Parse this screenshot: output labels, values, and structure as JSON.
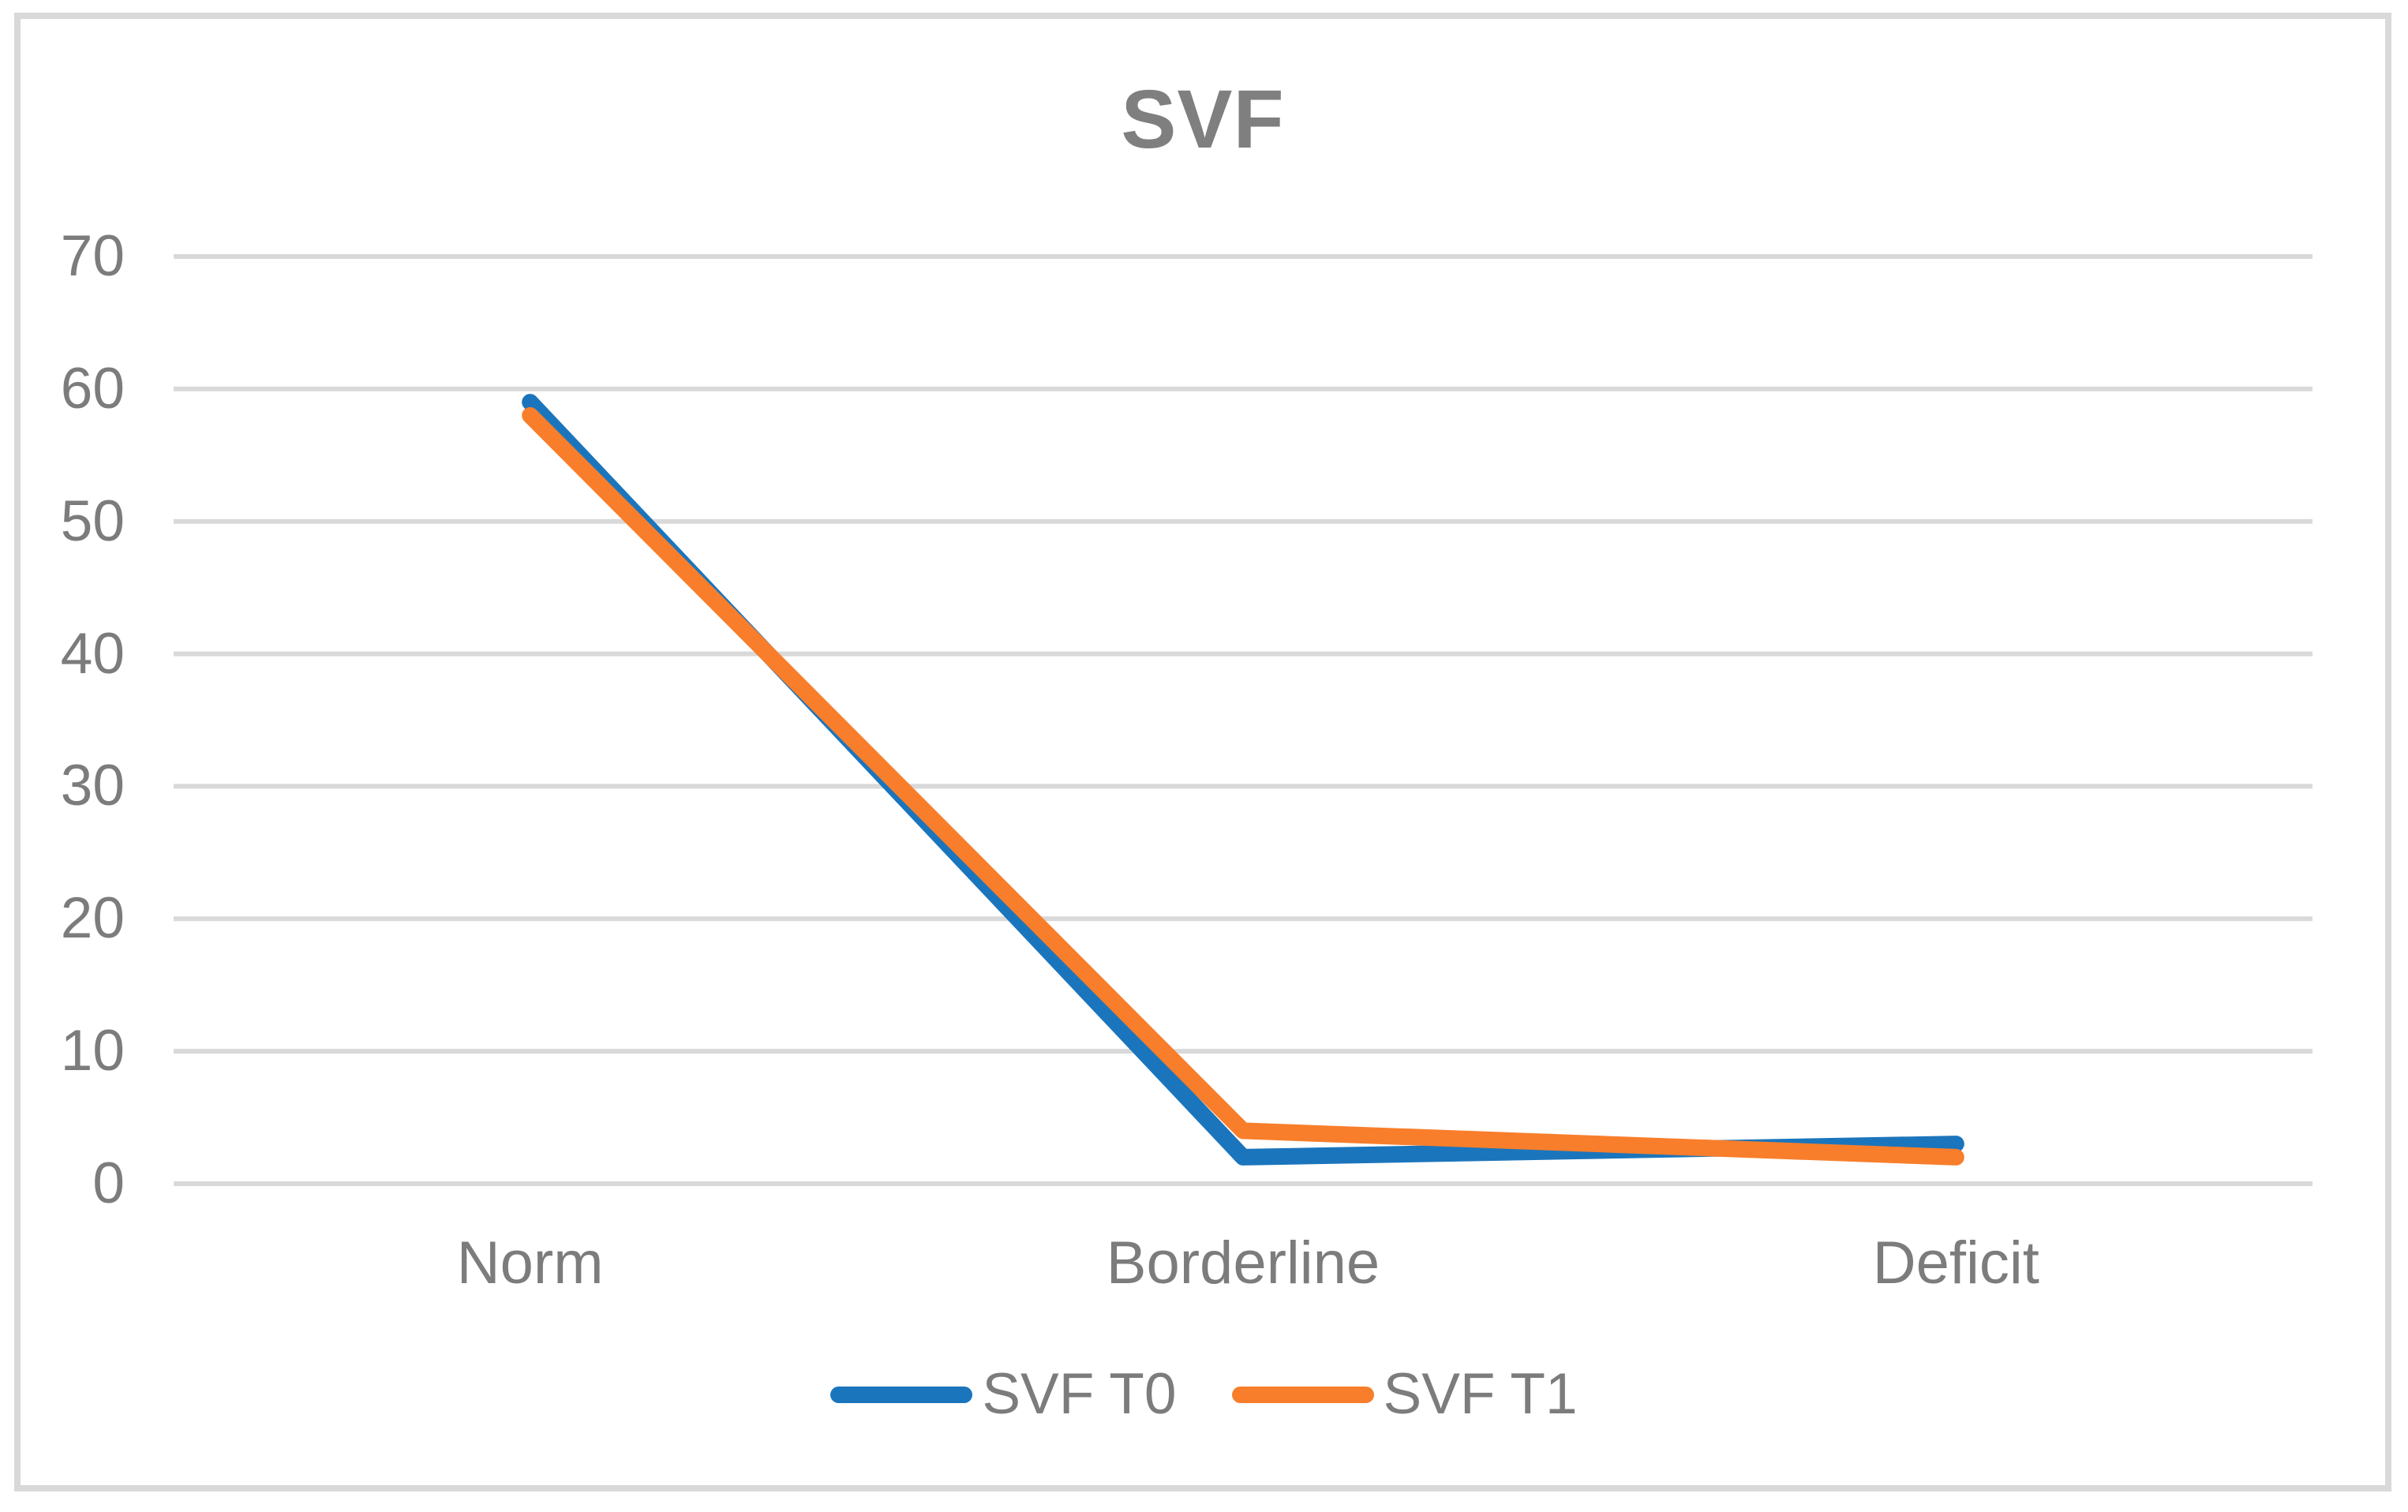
{
  "title": "SVF",
  "chart_data": {
    "type": "line",
    "title": "SVF",
    "categories": [
      "Norm",
      "Borderline",
      "Deficit"
    ],
    "series": [
      {
        "name": "SVF T0",
        "color": "#1b75bc",
        "values": [
          59,
          2,
          3
        ]
      },
      {
        "name": "SVF T1",
        "color": "#f87e2b",
        "values": [
          58,
          4,
          2
        ]
      }
    ],
    "ylim": [
      0,
      70
    ],
    "y_ticks": [
      0,
      10,
      20,
      30,
      40,
      50,
      60,
      70
    ],
    "xlabel": "",
    "ylabel": "",
    "grid": "horizontal",
    "legend_position": "bottom",
    "grid_color": "#d9d9d9",
    "frame_color": "#d9d9d9",
    "text_color": "#7c7c7c",
    "title_color": "#7f7f7f"
  }
}
